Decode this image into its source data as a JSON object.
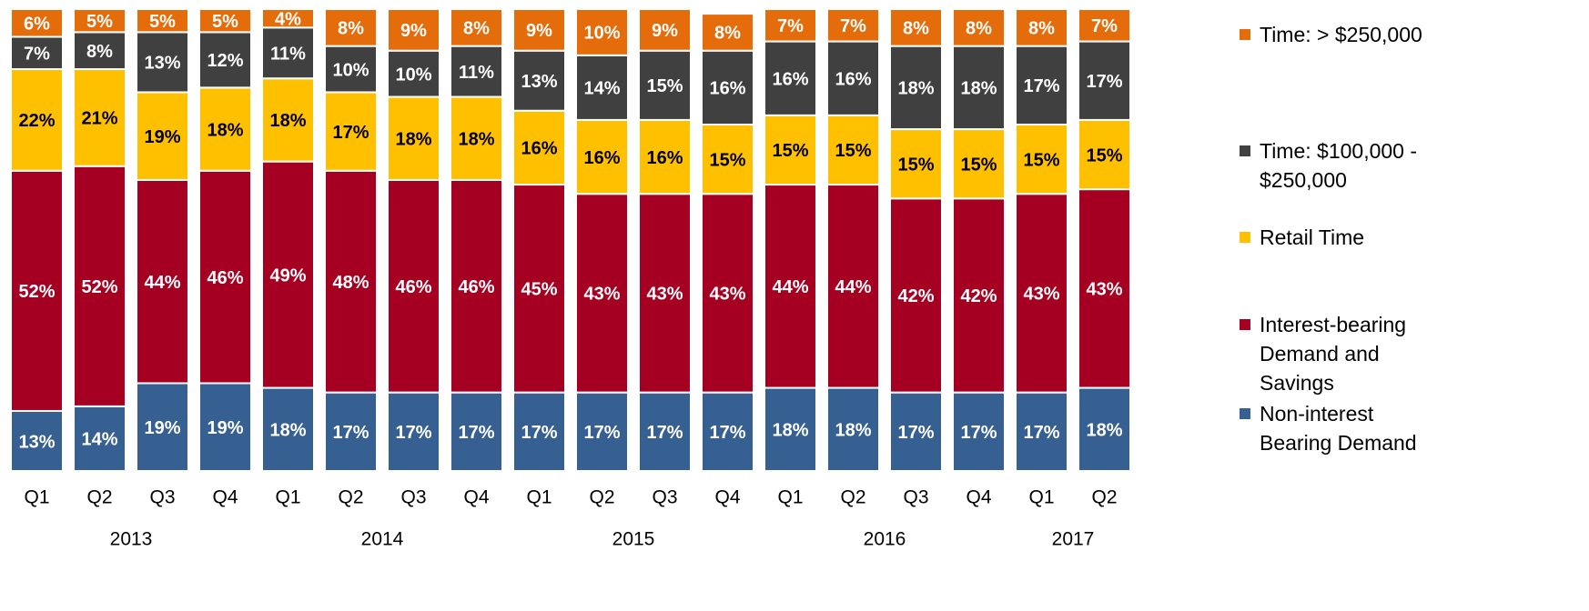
{
  "chart_data": {
    "type": "stacked_bar",
    "categories": [
      "Q1",
      "Q2",
      "Q3",
      "Q4",
      "Q1",
      "Q2",
      "Q3",
      "Q4",
      "Q1",
      "Q2",
      "Q3",
      "Q4",
      "Q1",
      "Q2",
      "Q3",
      "Q4",
      "Q1",
      "Q2"
    ],
    "x_groups": [
      {
        "label": "2013",
        "count": 4
      },
      {
        "label": "2014",
        "count": 4
      },
      {
        "label": "2015",
        "count": 4
      },
      {
        "label": "2016",
        "count": 4
      },
      {
        "label": "2017",
        "count": 2
      }
    ],
    "ylim": [
      0,
      100
    ],
    "series": [
      {
        "name": "Non-interest Bearing Demand",
        "color": "#376092",
        "values": [
          13,
          14,
          19,
          19,
          18,
          17,
          17,
          17,
          17,
          17,
          17,
          17,
          18,
          18,
          17,
          17,
          17,
          18
        ],
        "value_labels": [
          "13%",
          "14%",
          "19%",
          "19%",
          "18%",
          "17%",
          "17%",
          "17%",
          "17%",
          "17%",
          "17%",
          "17%",
          "18%",
          "18%",
          "17%",
          "17%",
          "17%",
          "18%"
        ]
      },
      {
        "name": "Interest-bearing Demand and Savings",
        "color": "#a50021",
        "values": [
          52,
          52,
          44,
          46,
          49,
          48,
          46,
          46,
          45,
          43,
          43,
          43,
          44,
          44,
          42,
          42,
          43,
          43
        ],
        "value_labels": [
          "52%",
          "52%",
          "44%",
          "46%",
          "49%",
          "48%",
          "46%",
          "46%",
          "45%",
          "43%",
          "43%",
          "43%",
          "44%",
          "44%",
          "42%",
          "42%",
          "43%",
          "43%"
        ]
      },
      {
        "name": "Retail Time",
        "color": "#ffc000",
        "values": [
          22,
          21,
          19,
          18,
          18,
          17,
          18,
          18,
          16,
          16,
          16,
          15,
          15,
          15,
          15,
          15,
          15,
          15
        ],
        "value_labels": [
          "22%",
          "21%",
          "19%",
          "18%",
          "18%",
          "17%",
          "18%",
          "18%",
          "16%",
          "16%",
          "16%",
          "15%",
          "15%",
          "15%",
          "15%",
          "15%",
          "15%",
          "15%"
        ]
      },
      {
        "name": "Time: $100,000 - $250,000",
        "color": "#404040",
        "values": [
          7,
          8,
          13,
          12,
          11,
          10,
          10,
          11,
          13,
          14,
          15,
          16,
          16,
          16,
          18,
          18,
          17,
          17
        ],
        "value_labels": [
          "7%",
          "8%",
          "13%",
          "12%",
          "11%",
          "10%",
          "10%",
          "11%",
          "13%",
          "14%",
          "15%",
          "16%",
          "16%",
          "16%",
          "18%",
          "18%",
          "17%",
          "17%"
        ]
      },
      {
        "name": "Time: > $250,000",
        "color": "#e46c0a",
        "values": [
          6,
          5,
          5,
          5,
          4,
          8,
          9,
          8,
          9,
          10,
          9,
          8,
          7,
          7,
          8,
          8,
          8,
          7
        ],
        "value_labels": [
          "6%",
          "5%",
          "5%",
          "5%",
          "4%",
          "8%",
          "9%",
          "8%",
          "9%",
          "10%",
          "9%",
          "8%",
          "7%",
          "7%",
          "8%",
          "8%",
          "8%",
          "7%"
        ]
      }
    ],
    "legend": "right"
  }
}
